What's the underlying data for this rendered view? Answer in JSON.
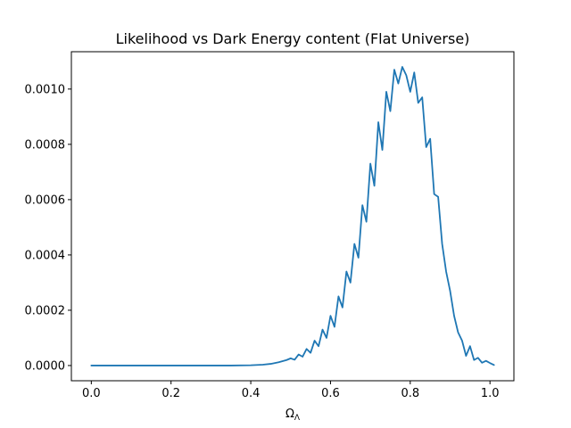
{
  "chart_data": {
    "type": "line",
    "title": "Likelihood vs Dark Energy content (Flat Universe)",
    "xlabel_base": "Ω",
    "xlabel_sub": "Λ",
    "ylabel": "",
    "xlim": [
      -0.05,
      1.06
    ],
    "ylim": [
      -5.5e-05,
      0.001135
    ],
    "x_ticks": [
      0.0,
      0.2,
      0.4,
      0.6,
      0.8,
      1.0
    ],
    "x_tick_labels": [
      "0.0",
      "0.2",
      "0.4",
      "0.6",
      "0.8",
      "1.0"
    ],
    "y_ticks": [
      0.0,
      0.0002,
      0.0004,
      0.0006,
      0.0008,
      0.001
    ],
    "y_tick_labels": [
      "0.0000",
      "0.0002",
      "0.0004",
      "0.0006",
      "0.0008",
      "0.0010"
    ],
    "grid": false,
    "series": [
      {
        "color": "#1f77b4",
        "x": [
          0.0,
          0.05,
          0.1,
          0.15,
          0.2,
          0.25,
          0.3,
          0.35,
          0.4,
          0.43,
          0.45,
          0.47,
          0.49,
          0.5,
          0.51,
          0.52,
          0.53,
          0.54,
          0.55,
          0.56,
          0.57,
          0.58,
          0.59,
          0.6,
          0.61,
          0.62,
          0.63,
          0.64,
          0.65,
          0.66,
          0.67,
          0.68,
          0.69,
          0.7,
          0.71,
          0.72,
          0.73,
          0.74,
          0.75,
          0.76,
          0.77,
          0.78,
          0.79,
          0.8,
          0.81,
          0.82,
          0.83,
          0.84,
          0.85,
          0.86,
          0.87,
          0.88,
          0.89,
          0.9,
          0.91,
          0.92,
          0.93,
          0.94,
          0.95,
          0.96,
          0.97,
          0.98,
          0.99,
          1.0,
          1.01
        ],
        "y": [
          0.0,
          0.0,
          0.0,
          0.0,
          0.0,
          0.0,
          0.0,
          0.0,
          1e-06,
          3e-06,
          6e-06,
          1.2e-05,
          2e-05,
          2.6e-05,
          2.1e-05,
          4e-05,
          3.2e-05,
          6e-05,
          4.6e-05,
          9e-05,
          7e-05,
          0.00013,
          0.0001,
          0.00018,
          0.00014,
          0.00025,
          0.00021,
          0.00034,
          0.0003,
          0.00044,
          0.00039,
          0.00058,
          0.00052,
          0.00073,
          0.00065,
          0.00088,
          0.00078,
          0.00099,
          0.00092,
          0.00107,
          0.00102,
          0.00108,
          0.00105,
          0.00099,
          0.00106,
          0.00095,
          0.00097,
          0.00079,
          0.00082,
          0.00062,
          0.00061,
          0.00044,
          0.00034,
          0.00027,
          0.00018,
          0.00012,
          9e-05,
          3.5e-05,
          7e-05,
          2e-05,
          2.8e-05,
          1e-05,
          1.7e-05,
          9e-06,
          2e-06
        ]
      }
    ]
  }
}
